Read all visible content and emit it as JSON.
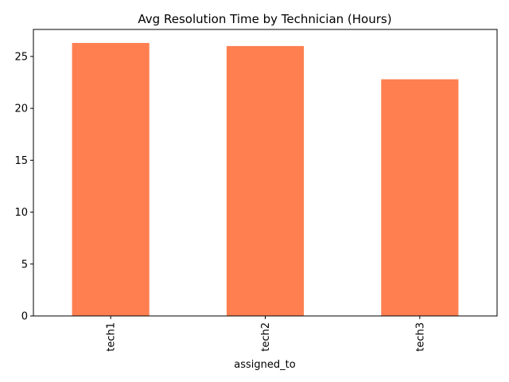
{
  "chart_data": {
    "type": "bar",
    "title": "Avg Resolution Time by Technician (Hours)",
    "xlabel": "assigned_to",
    "ylabel": "",
    "categories": [
      "tech1",
      "tech2",
      "tech3"
    ],
    "values": [
      26.3,
      26.0,
      22.8
    ],
    "ylim": [
      0,
      27.6
    ],
    "yticks": [
      0,
      5,
      10,
      15,
      20,
      25
    ],
    "bar_color": "#ff7f50",
    "grid": false,
    "legend": "none"
  }
}
